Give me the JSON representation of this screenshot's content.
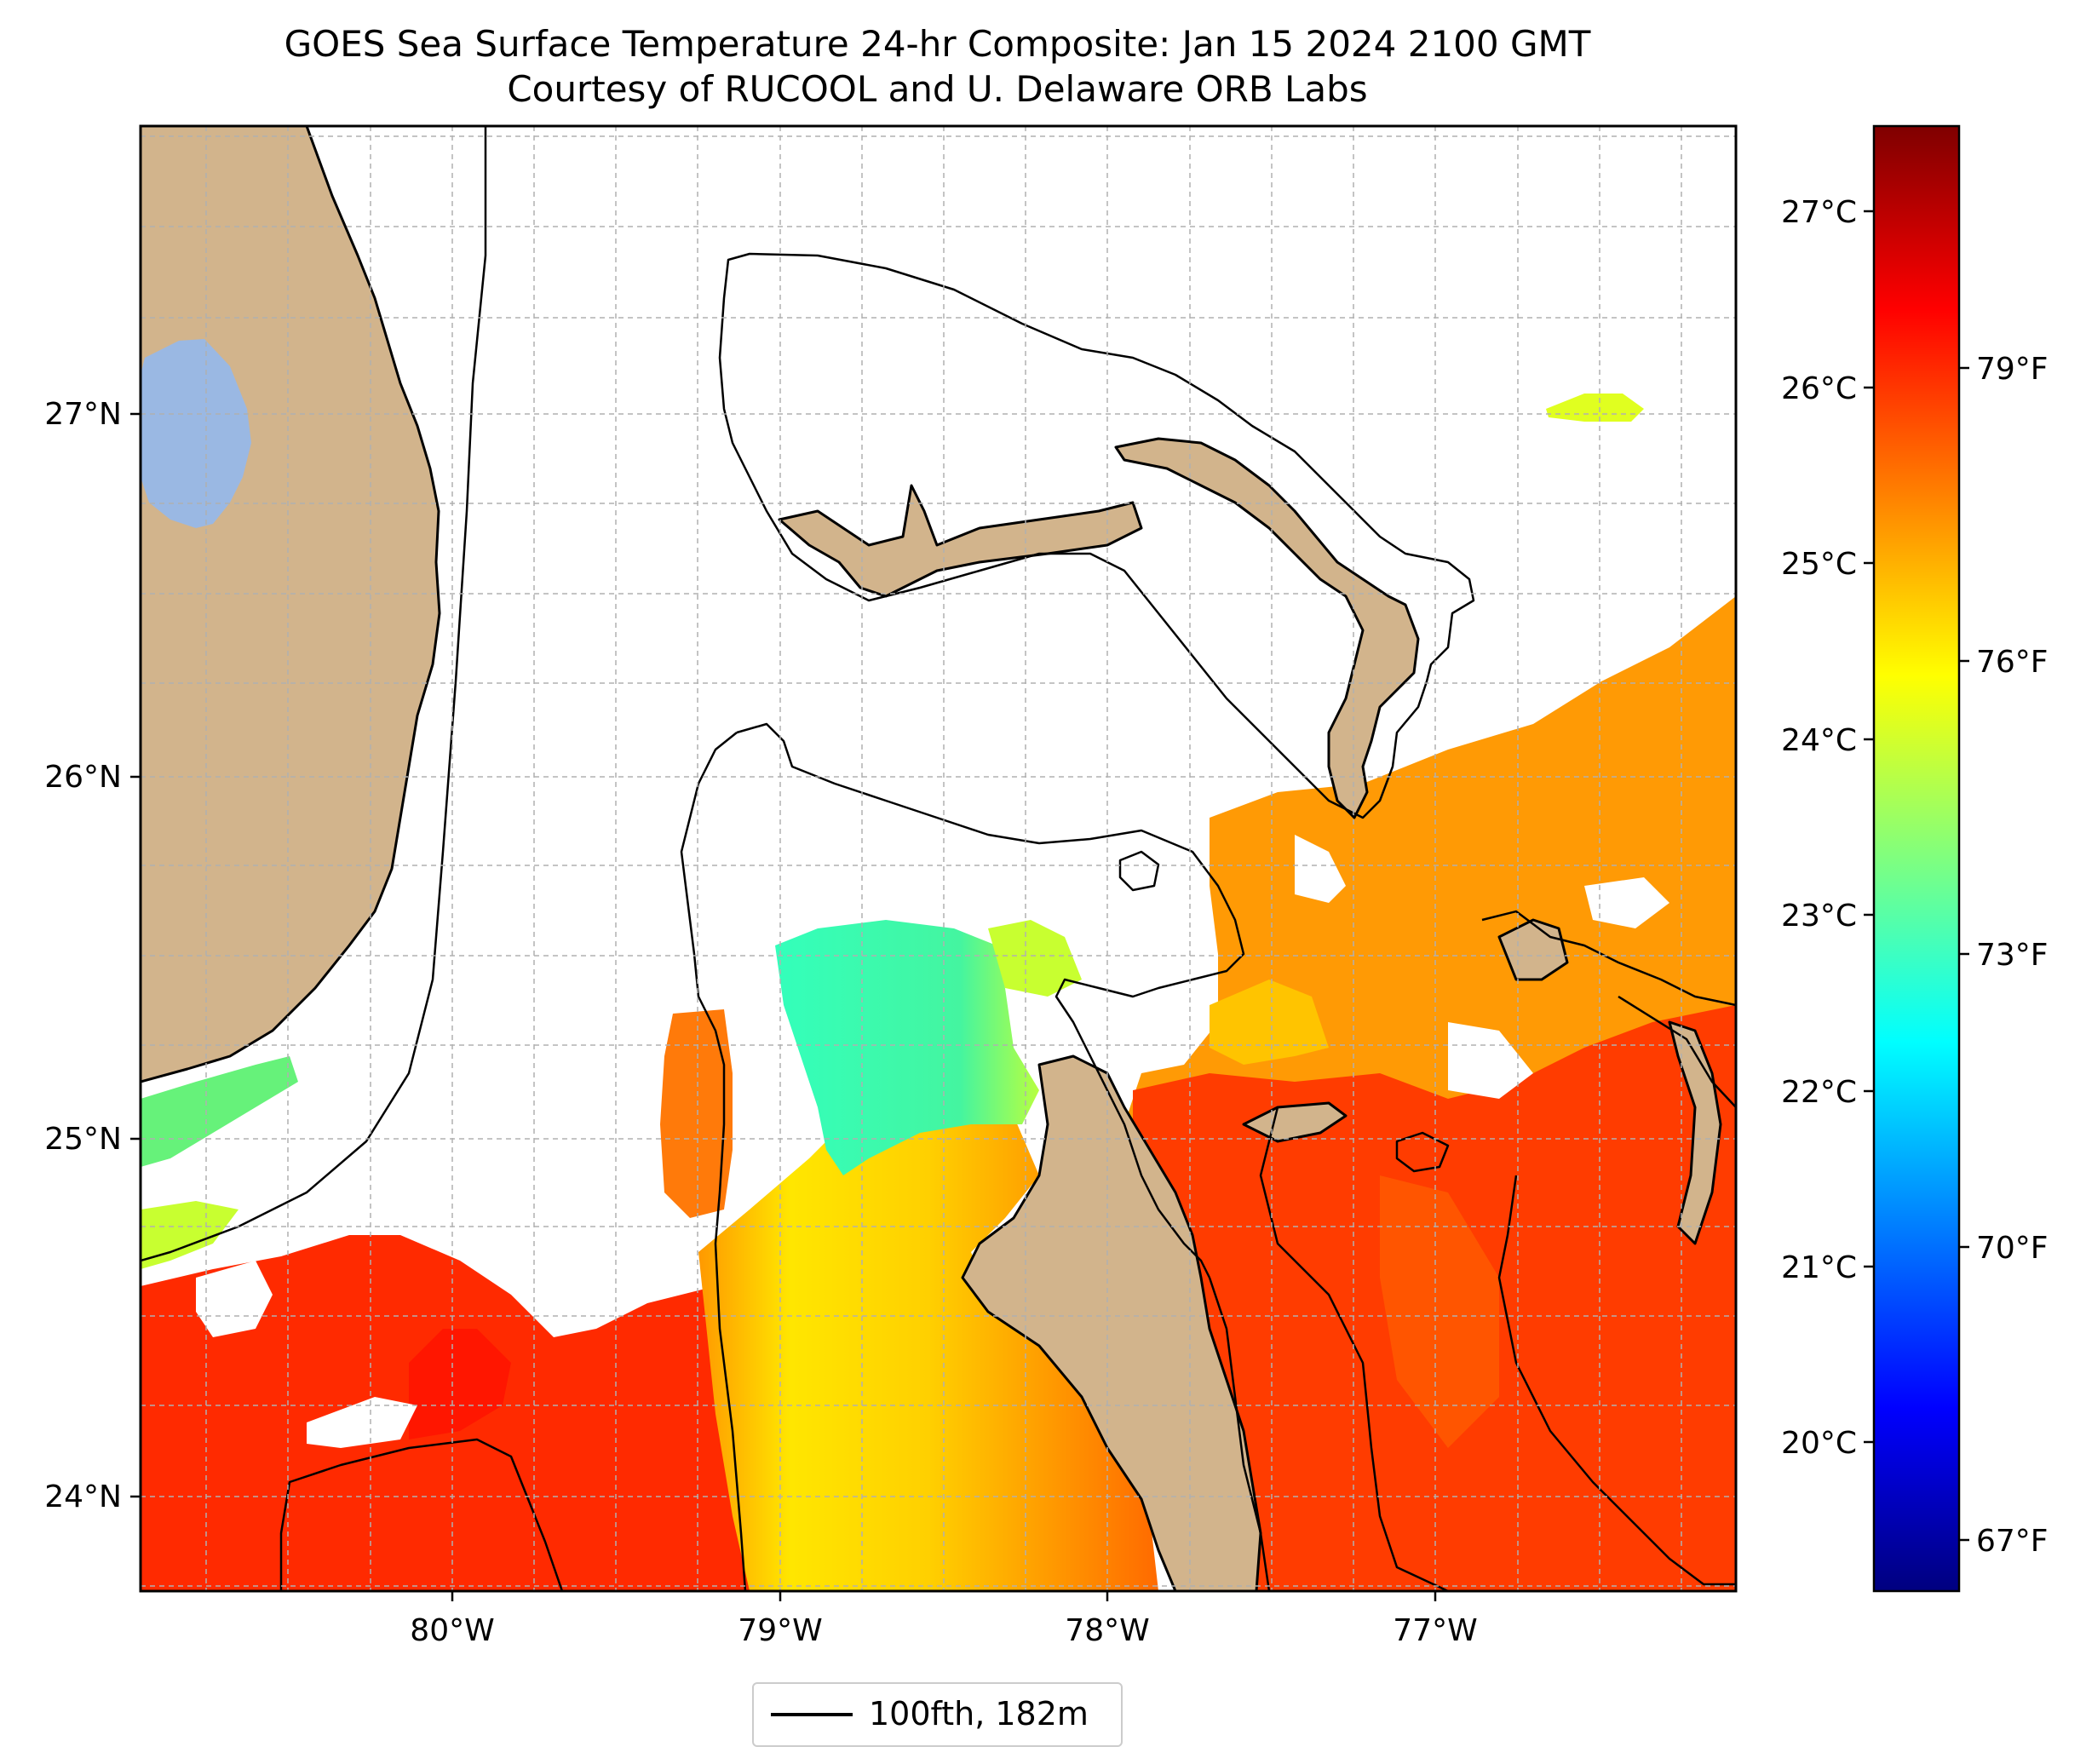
{
  "title": "GOES Sea Surface Temperature 24-hr Composite: Jan 15 2024 2100 GMT",
  "subtitle": "Courtesy of RUCOOL and U. Delaware ORB Labs",
  "map": {
    "lon_labels": [
      "80°W",
      "79°W",
      "78°W",
      "77°W"
    ],
    "lat_labels": [
      "27°N",
      "26°N",
      "25°N",
      "24°N"
    ],
    "gridlines": true,
    "land_color": "#d2b48c",
    "lake_color": "#9ab8e3",
    "cloud_mask_color": "#ffffff"
  },
  "colorbar": {
    "celsius_labels": [
      "27°C",
      "26°C",
      "25°C",
      "24°C",
      "23°C",
      "22°C",
      "21°C",
      "20°C"
    ],
    "fahrenheit_labels": [
      "79°F",
      "76°F",
      "73°F",
      "70°F",
      "67°F"
    ],
    "colormap": "jet",
    "colors": [
      "#00007f",
      "#0000ff",
      "#007fff",
      "#00ffff",
      "#7fff7f",
      "#ffff00",
      "#ff7f00",
      "#ff0000",
      "#7f0000"
    ]
  },
  "legend": {
    "label": "100fth, 182m"
  }
}
